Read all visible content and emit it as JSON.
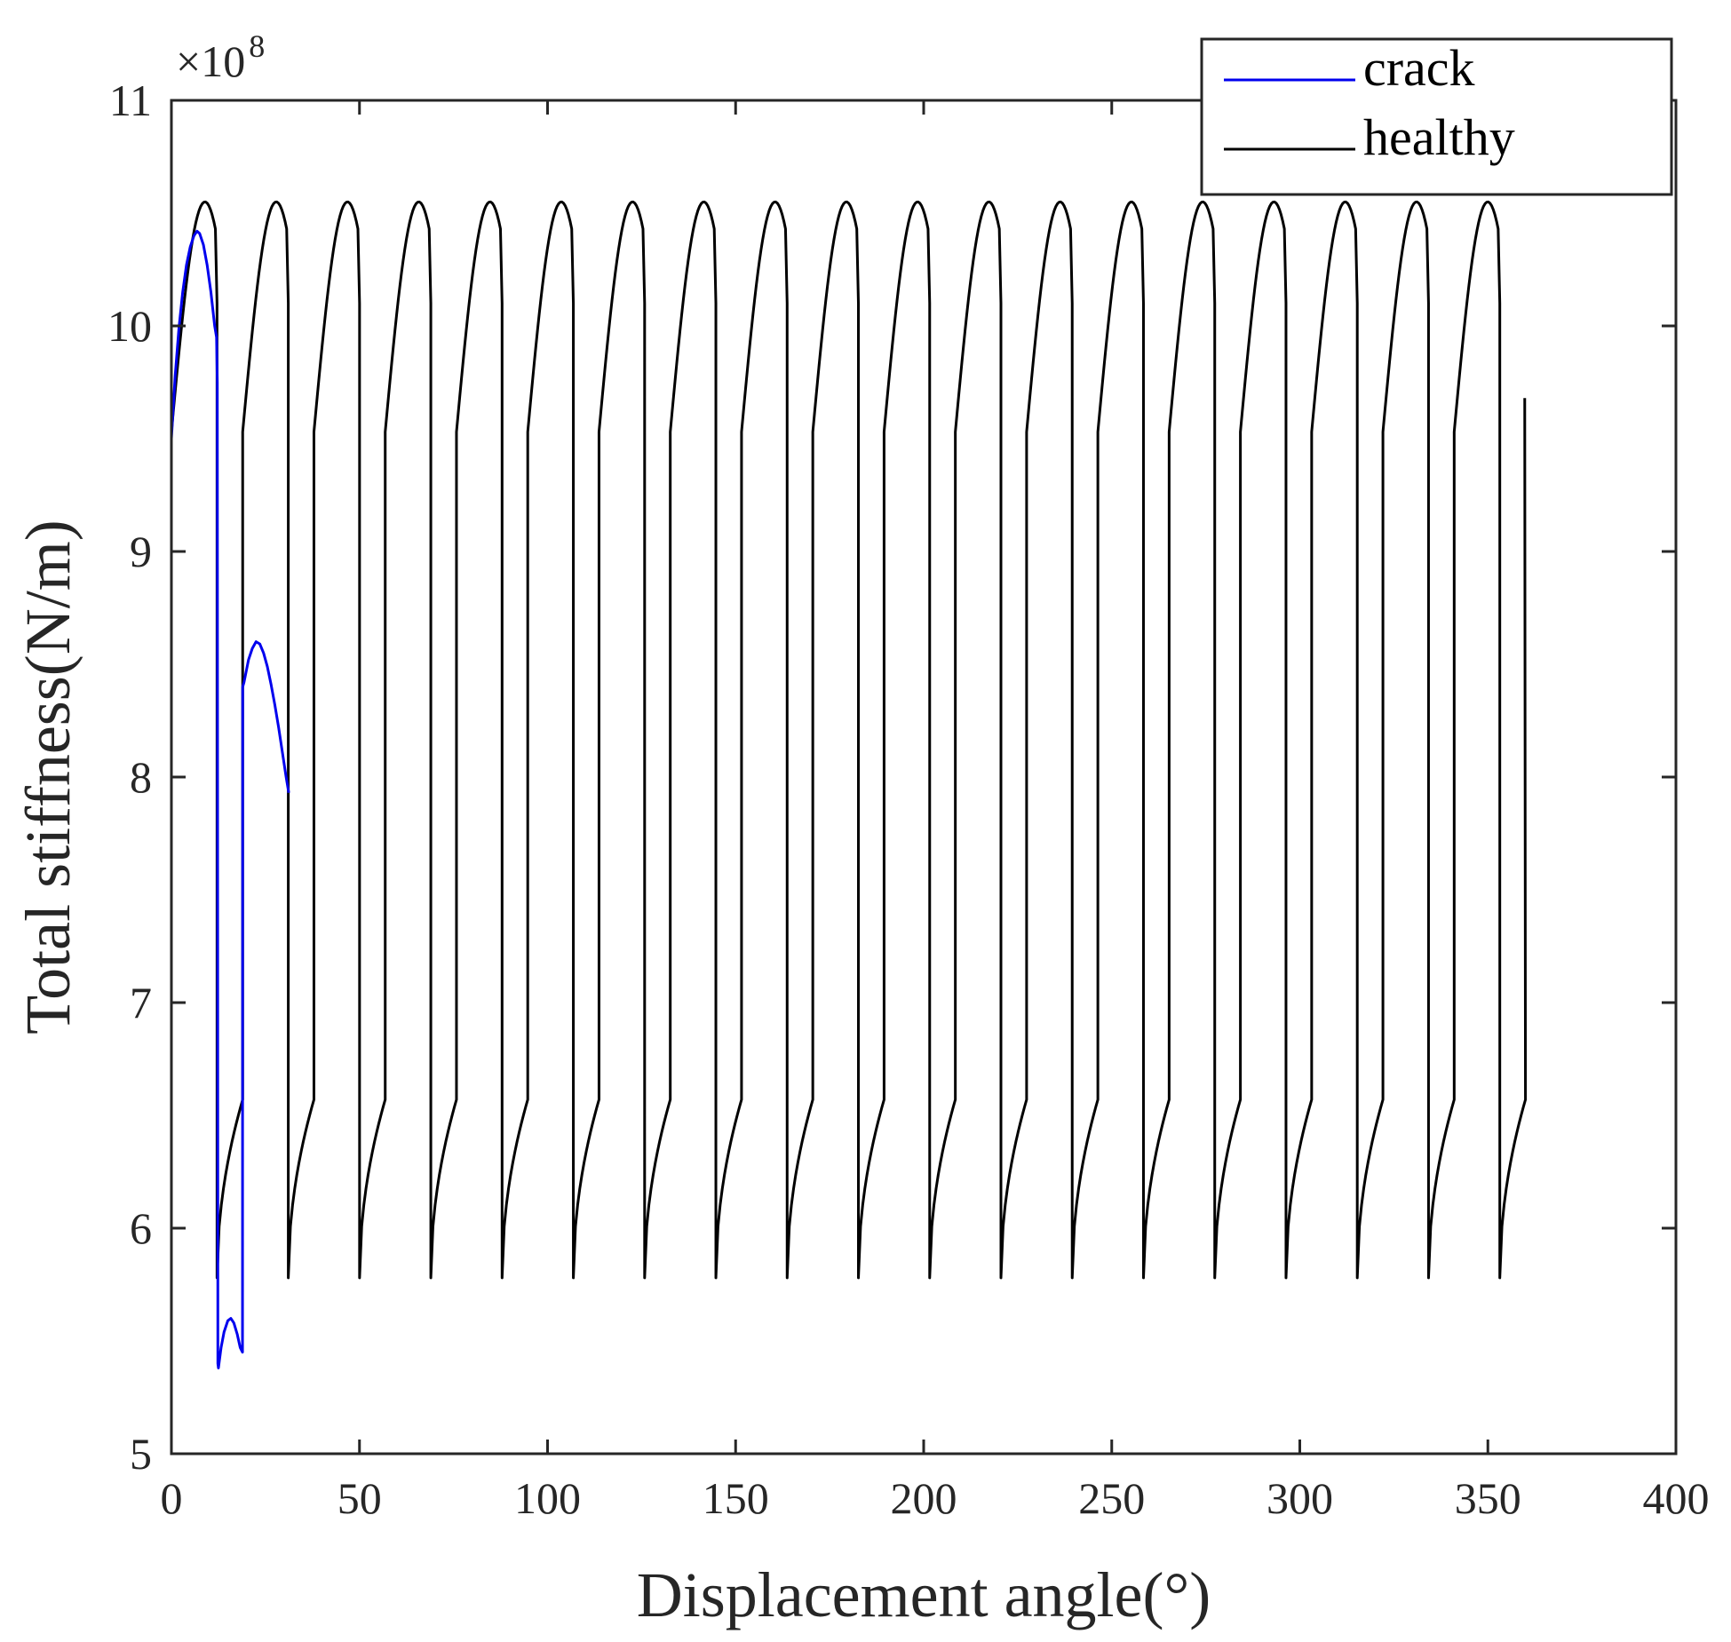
{
  "chart_data": {
    "type": "line",
    "title": "",
    "xlabel": "Displacement angle(°)",
    "ylabel": "Total stiffness(N/m)",
    "xlim": [
      0,
      400
    ],
    "ylim": [
      5,
      11
    ],
    "xticks": [
      0,
      50,
      100,
      150,
      200,
      250,
      300,
      350,
      400
    ],
    "yticks": [
      5,
      6,
      7,
      8,
      9,
      10,
      11
    ],
    "xtick_labels": [
      "0",
      "50",
      "100",
      "150",
      "200",
      "250",
      "300",
      "350",
      "400"
    ],
    "ytick_labels": [
      "5",
      "6",
      "7",
      "8",
      "9",
      "10",
      "11"
    ],
    "y_exponent_label": "×10",
    "y_exponent": "8",
    "grid": false,
    "legend_position": "top-right",
    "mesh_period_deg": 18.947,
    "series": [
      {
        "name": "crack",
        "color": "#0000ee",
        "points": [
          [
            0.0,
            9.5
          ],
          [
            1.0,
            9.78
          ],
          [
            2.0,
            9.99
          ],
          [
            3.0,
            10.15
          ],
          [
            4.0,
            10.27
          ],
          [
            5.0,
            10.35
          ],
          [
            6.0,
            10.4
          ],
          [
            6.8,
            10.42
          ],
          [
            7.5,
            10.41
          ],
          [
            8.5,
            10.36
          ],
          [
            9.5,
            10.27
          ],
          [
            10.5,
            10.15
          ],
          [
            11.5,
            10.0
          ],
          [
            12.0,
            9.95
          ],
          [
            12.2,
            9.75
          ],
          [
            12.3,
            7.25
          ],
          [
            12.35,
            5.4
          ],
          [
            12.5,
            5.38
          ],
          [
            13.2,
            5.47
          ],
          [
            14.0,
            5.54
          ],
          [
            15.0,
            5.59
          ],
          [
            15.8,
            5.6
          ],
          [
            16.6,
            5.58
          ],
          [
            17.5,
            5.53
          ],
          [
            18.3,
            5.47
          ],
          [
            18.9,
            5.45
          ],
          [
            18.95,
            8.4
          ],
          [
            19.3,
            8.42
          ],
          [
            20.5,
            8.52
          ],
          [
            21.5,
            8.57
          ],
          [
            22.5,
            8.6
          ],
          [
            23.5,
            8.59
          ],
          [
            24.5,
            8.55
          ],
          [
            25.5,
            8.49
          ],
          [
            26.5,
            8.41
          ],
          [
            27.5,
            8.32
          ],
          [
            28.5,
            8.22
          ],
          [
            29.5,
            8.11
          ],
          [
            30.5,
            8.0
          ],
          [
            31.2,
            7.93
          ]
        ]
      },
      {
        "name": "healthy",
        "color": "#000000",
        "high_contact_min": 9.53,
        "high_contact_peak": 10.55,
        "high_contact_end": 10.1,
        "low_contact_min": 5.78,
        "low_contact_max": 6.57,
        "double_contact_fraction": 0.64,
        "end_angle_deg": 359.8,
        "end_value": 9.68
      }
    ]
  }
}
